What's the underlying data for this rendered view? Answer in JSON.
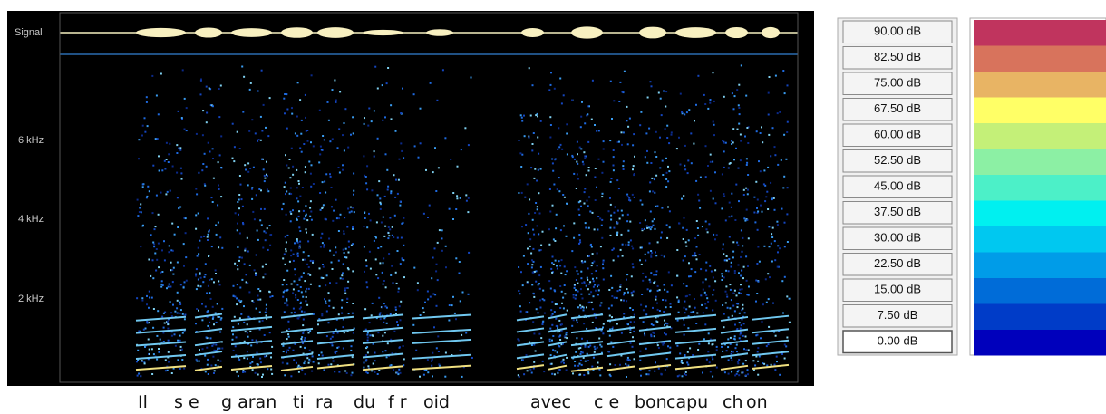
{
  "spectrogram": {
    "signal_label": "Signal",
    "freq_labels": [
      "6 kHz",
      "4 kHz",
      "2 kHz"
    ]
  },
  "transcript": [
    "Il",
    "s e",
    "g aran",
    "ti",
    "ra",
    "du",
    "f r",
    "oid",
    "avec",
    "c e",
    "bon",
    "capu",
    "ch",
    "on"
  ],
  "scale": {
    "levels": [
      {
        "label": "90.00 dB",
        "color": "#c0345e"
      },
      {
        "label": "82.50 dB",
        "color": "#d8735c"
      },
      {
        "label": "75.00 dB",
        "color": "#e8b464"
      },
      {
        "label": "67.50 dB",
        "color": "#ffff66"
      },
      {
        "label": "60.00 dB",
        "color": "#c4f078"
      },
      {
        "label": "52.50 dB",
        "color": "#8cf0a4"
      },
      {
        "label": "45.00 dB",
        "color": "#4cf0c8"
      },
      {
        "label": "37.50 dB",
        "color": "#00f0f0"
      },
      {
        "label": "30.00 dB",
        "color": "#00c8f0"
      },
      {
        "label": "22.50 dB",
        "color": "#009ce8"
      },
      {
        "label": "15.00 dB",
        "color": "#006cd8"
      },
      {
        "label": "7.50 dB",
        "color": "#003cc8"
      },
      {
        "label": "0.00 dB",
        "color": "#0000bc"
      }
    ]
  }
}
